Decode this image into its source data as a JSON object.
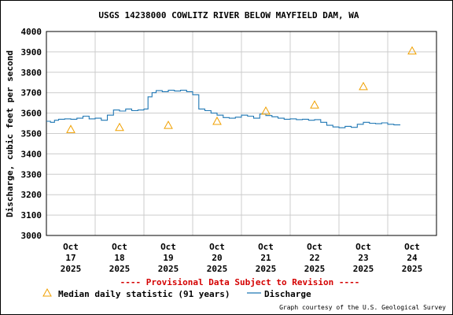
{
  "colors": {
    "discharge": "#1f77b4",
    "median": "#f0a000",
    "provisional": "#d40000",
    "grid": "#cccccc"
  },
  "legend": {
    "median_label": "Median daily statistic (91 years)",
    "discharge_label": "Discharge"
  },
  "provisional_note": "---- Provisional Data Subject to Revision ----",
  "credit": "Graph courtesy of the U.S. Geological Survey",
  "chart_data": {
    "type": "line",
    "title": "USGS 14238000 COWLITZ RIVER BELOW MAYFIELD DAM, WA",
    "ylabel": "Discharge, cubic feet per second",
    "xlabel": "",
    "ylim": [
      3000,
      4000
    ],
    "yticks": [
      3000,
      3100,
      3200,
      3300,
      3400,
      3500,
      3600,
      3700,
      3800,
      3900,
      4000
    ],
    "xlim": [
      "2025-10-17T00:00",
      "2025-10-25T00:00"
    ],
    "xticks": [
      {
        "month": "Oct",
        "day": "17",
        "year": "2025"
      },
      {
        "month": "Oct",
        "day": "18",
        "year": "2025"
      },
      {
        "month": "Oct",
        "day": "19",
        "year": "2025"
      },
      {
        "month": "Oct",
        "day": "20",
        "year": "2025"
      },
      {
        "month": "Oct",
        "day": "21",
        "year": "2025"
      },
      {
        "month": "Oct",
        "day": "22",
        "year": "2025"
      },
      {
        "month": "Oct",
        "day": "23",
        "year": "2025"
      },
      {
        "month": "Oct",
        "day": "24",
        "year": "2025"
      }
    ],
    "grid": true,
    "series": [
      {
        "name": "Discharge",
        "kind": "line",
        "x": [
          "2025-10-17T00:00",
          "2025-10-17T02:00",
          "2025-10-17T04:00",
          "2025-10-17T06:00",
          "2025-10-17T09:00",
          "2025-10-17T12:00",
          "2025-10-17T15:00",
          "2025-10-17T18:00",
          "2025-10-17T21:00",
          "2025-10-18T00:00",
          "2025-10-18T03:00",
          "2025-10-18T06:00",
          "2025-10-18T09:00",
          "2025-10-18T12:00",
          "2025-10-18T15:00",
          "2025-10-18T18:00",
          "2025-10-18T21:00",
          "2025-10-19T00:00",
          "2025-10-19T02:00",
          "2025-10-19T04:00",
          "2025-10-19T06:00",
          "2025-10-19T09:00",
          "2025-10-19T12:00",
          "2025-10-19T15:00",
          "2025-10-19T18:00",
          "2025-10-19T21:00",
          "2025-10-20T00:00",
          "2025-10-20T03:00",
          "2025-10-20T06:00",
          "2025-10-20T09:00",
          "2025-10-20T12:00",
          "2025-10-20T15:00",
          "2025-10-20T18:00",
          "2025-10-20T21:00",
          "2025-10-21T00:00",
          "2025-10-21T03:00",
          "2025-10-21T06:00",
          "2025-10-21T09:00",
          "2025-10-21T12:00",
          "2025-10-21T15:00",
          "2025-10-21T18:00",
          "2025-10-21T21:00",
          "2025-10-22T00:00",
          "2025-10-22T03:00",
          "2025-10-22T06:00",
          "2025-10-22T09:00",
          "2025-10-22T12:00",
          "2025-10-22T15:00",
          "2025-10-22T18:00",
          "2025-10-22T21:00",
          "2025-10-23T00:00",
          "2025-10-23T03:00",
          "2025-10-23T06:00",
          "2025-10-23T09:00",
          "2025-10-23T12:00",
          "2025-10-23T15:00",
          "2025-10-23T18:00",
          "2025-10-23T21:00",
          "2025-10-24T00:00",
          "2025-10-24T03:00",
          "2025-10-24T06:00"
        ],
        "values": [
          3560,
          3555,
          3565,
          3570,
          3572,
          3570,
          3575,
          3585,
          3572,
          3575,
          3565,
          3590,
          3615,
          3610,
          3620,
          3612,
          3615,
          3620,
          3680,
          3700,
          3710,
          3705,
          3712,
          3708,
          3712,
          3705,
          3690,
          3620,
          3612,
          3600,
          3590,
          3578,
          3575,
          3580,
          3590,
          3585,
          3575,
          3595,
          3588,
          3582,
          3575,
          3570,
          3572,
          3568,
          3570,
          3565,
          3568,
          3555,
          3540,
          3532,
          3528,
          3535,
          3530,
          3545,
          3555,
          3550,
          3548,
          3552,
          3545,
          3542,
          3540
        ]
      },
      {
        "name": "Median daily statistic (91 years)",
        "kind": "markers",
        "x": [
          "2025-10-17T12:00",
          "2025-10-18T12:00",
          "2025-10-19T12:00",
          "2025-10-20T12:00",
          "2025-10-21T12:00",
          "2025-10-22T12:00",
          "2025-10-23T12:00",
          "2025-10-24T12:00"
        ],
        "values": [
          3520,
          3530,
          3540,
          3560,
          3610,
          3640,
          3730,
          3905
        ]
      }
    ]
  }
}
